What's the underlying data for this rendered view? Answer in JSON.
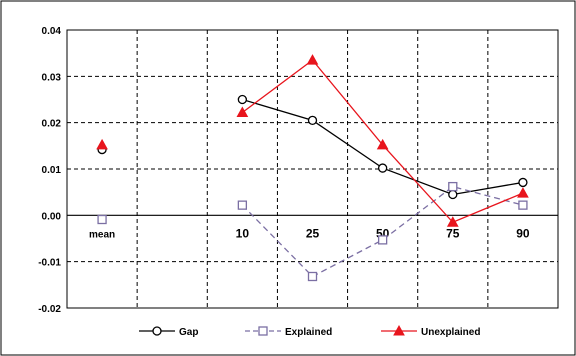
{
  "chart_data": {
    "type": "line",
    "categories": [
      "mean",
      "",
      "10",
      "25",
      "50",
      "75",
      "90"
    ],
    "ylim": [
      -0.02,
      0.04
    ],
    "yticks": [
      "0.04",
      "0.03",
      "0.02",
      "0.01",
      "0.00",
      "-0.01",
      "-0.02"
    ],
    "ytick_values": [
      0.04,
      0.03,
      0.02,
      0.01,
      0.0,
      -0.01,
      -0.02
    ],
    "grid": true,
    "legend_position": "bottom",
    "series": [
      {
        "name": "Gap",
        "color": "#000000",
        "marker": "circle",
        "dash": "solid",
        "values": [
          0.0142,
          null,
          0.025,
          0.0205,
          0.0102,
          0.0045,
          0.0071
        ]
      },
      {
        "name": "Explained",
        "color": "#7b6fa3",
        "marker": "square",
        "dash": "dashed",
        "values": [
          -0.0009,
          null,
          0.0022,
          -0.0132,
          -0.0053,
          0.0062,
          0.0022
        ]
      },
      {
        "name": "Unexplained",
        "color": "#e8151d",
        "marker": "triangle",
        "dash": "solid",
        "values": [
          0.0152,
          null,
          0.0222,
          0.0335,
          0.0152,
          -0.0015,
          0.0048
        ]
      }
    ]
  }
}
